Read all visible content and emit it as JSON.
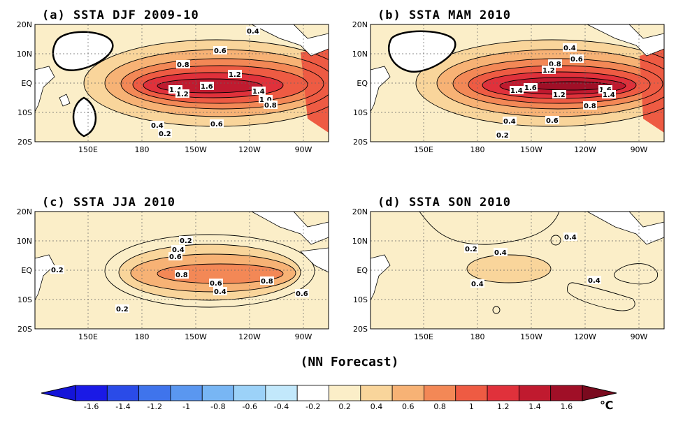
{
  "figure": {
    "footer": "(NN Forecast)",
    "unit": "℃"
  },
  "axes": {
    "lat_labels": [
      "20N",
      "10N",
      "EQ",
      "10S",
      "20S"
    ],
    "lon_labels": [
      "150E",
      "180",
      "150W",
      "120W",
      "90W"
    ]
  },
  "panels": [
    {
      "id": "a",
      "title": "(a) SSTA DJF 2009-10",
      "peak_value": 1.7,
      "contour_labels": [
        "0.4",
        "0.6",
        "0.8",
        "1.2",
        "1.4",
        "1.2",
        "1.6",
        "1.4",
        "1.0",
        "0.8",
        "0.6",
        "0.4",
        "0.2"
      ]
    },
    {
      "id": "b",
      "title": "(b) SSTA MAM 2010",
      "peak_value": 1.7,
      "contour_labels": [
        "0.4",
        "0.6",
        "0.8",
        "1.2",
        "1.4",
        "1.6",
        "1.2",
        "1.6",
        "1.4",
        "0.8",
        "0.6",
        "0.4",
        "0.2"
      ]
    },
    {
      "id": "c",
      "title": "(c) SSTA JJA 2010",
      "peak_value": 0.95,
      "contour_labels": [
        "0.2",
        "0.4",
        "0.6",
        "0.2",
        "0.8",
        "0.6",
        "0.8",
        "0.4",
        "0.6",
        "0.2"
      ]
    },
    {
      "id": "d",
      "title": "(d) SSTA SON 2010",
      "peak_value": 0.5,
      "contour_labels": [
        "0.4",
        "0.2",
        "0.4",
        "0.4",
        "0.4"
      ]
    }
  ],
  "colorbar": {
    "tick_labels": [
      "-1.6",
      "-1.4",
      "-1.2",
      "-1",
      "-0.8",
      "-0.6",
      "-0.4",
      "-0.2",
      "0.2",
      "0.4",
      "0.6",
      "0.8",
      "1",
      "1.2",
      "1.4",
      "1.6"
    ],
    "colors": [
      "#1a1ae6",
      "#2a4be8",
      "#3f74ec",
      "#5a97f0",
      "#78b6f4",
      "#9cd2f8",
      "#c2e8fb",
      "#ffffff",
      "#fbeec8",
      "#f9d59b",
      "#f7b275",
      "#f38856",
      "#ee5b43",
      "#e0313b",
      "#c01a2f",
      "#a00f27"
    ]
  }
}
